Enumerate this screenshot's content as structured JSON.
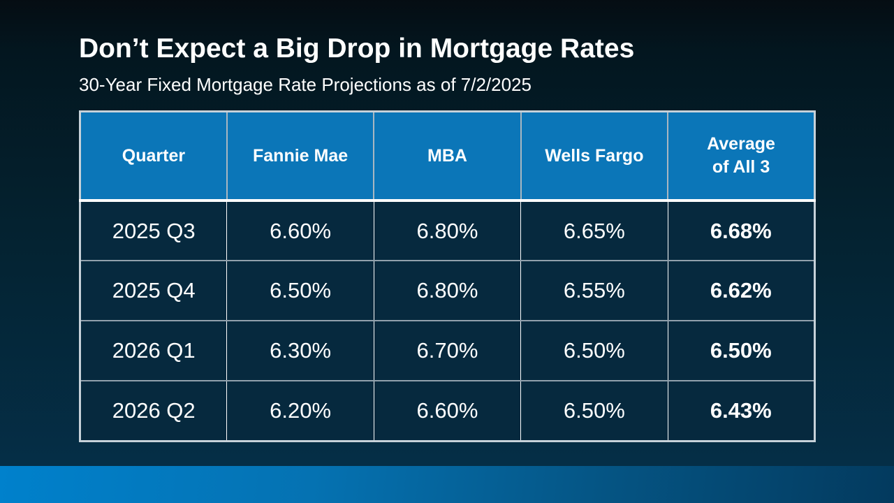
{
  "slide": {
    "title": "Don’t Expect a Big Drop in Mortgage Rates",
    "subtitle": "30-Year Fixed Mortgage Rate Projections as of 7/2/2025"
  },
  "table": {
    "columns": [
      "Quarter",
      "Fannie Mae",
      "MBA",
      "Wells Fargo",
      "Average\nof All 3"
    ],
    "rows": [
      [
        "2025 Q3",
        "6.60%",
        "6.80%",
        "6.65%",
        "6.68%"
      ],
      [
        "2025 Q4",
        "6.50%",
        "6.80%",
        "6.55%",
        "6.62%"
      ],
      [
        "2026 Q1",
        "6.30%",
        "6.70%",
        "6.50%",
        "6.50%"
      ],
      [
        "2026 Q2",
        "6.20%",
        "6.60%",
        "6.50%",
        "6.43%"
      ]
    ]
  },
  "chart_data": {
    "type": "table",
    "title": "Don’t Expect a Big Drop in Mortgage Rates",
    "subtitle": "30-Year Fixed Mortgage Rate Projections as of 7/2/2025",
    "columns": [
      "Quarter",
      "Fannie Mae",
      "MBA",
      "Wells Fargo",
      "Average of All 3"
    ],
    "categories": [
      "2025 Q3",
      "2025 Q4",
      "2026 Q1",
      "2026 Q2"
    ],
    "series": [
      {
        "name": "Fannie Mae",
        "values": [
          6.6,
          6.5,
          6.3,
          6.2
        ]
      },
      {
        "name": "MBA",
        "values": [
          6.8,
          6.8,
          6.7,
          6.6
        ]
      },
      {
        "name": "Wells Fargo",
        "values": [
          6.65,
          6.55,
          6.5,
          6.5
        ]
      },
      {
        "name": "Average of All 3",
        "values": [
          6.68,
          6.62,
          6.5,
          6.43
        ]
      }
    ],
    "unit": "%"
  },
  "colors": {
    "header_blue": "#0b76b8",
    "cell_navy": "#06293e",
    "background_top": "#050d13",
    "background_bottom": "#05304a",
    "row_divider": "#91a0ac",
    "accent_bar_left": "#0081cc",
    "accent_bar_right": "#033a5e",
    "text": "#ffffff"
  }
}
